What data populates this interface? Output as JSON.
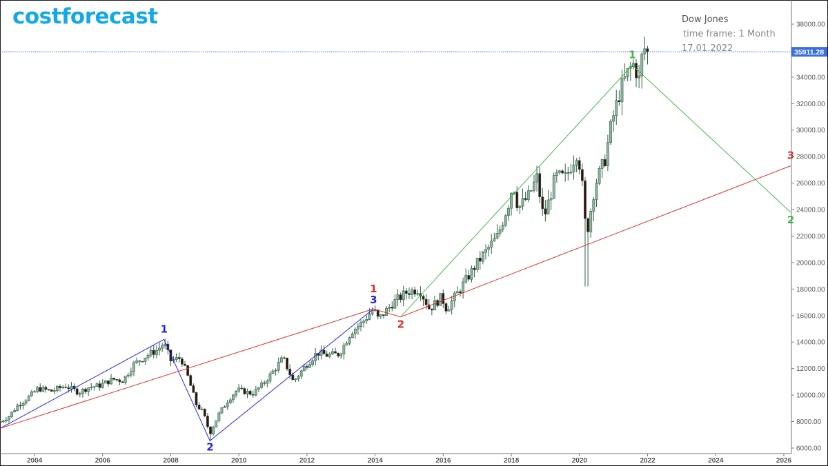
{
  "brand": {
    "logo_text": "costforecast",
    "logo_color": "#14a9e6"
  },
  "info_box": {
    "ticker": "Dow Jones",
    "time_frame": "time frame: 1 Month",
    "date": "17.01.2022"
  },
  "price_marker": {
    "value": "35911.28",
    "price": 35911.28,
    "bg_color": "#3b6fe0"
  },
  "colors": {
    "up_candle": "#8fb5a0",
    "up_candle_border": "#2f5e44",
    "down_candle": "#3a0e0e",
    "wave_blue": "#2222ee",
    "wave_red": "#e62a2a",
    "wave_green": "#4ab54a",
    "axis": "#777777"
  },
  "chart_data": {
    "type": "candlestick",
    "title": "Dow Jones",
    "subtitle": "time frame: 1 Month, 17.01.2022",
    "xlabel": "",
    "ylabel": "",
    "x_ticks": [
      "2004",
      "2006",
      "2008",
      "2010",
      "2012",
      "2014",
      "2016",
      "2018",
      "2020",
      "2022",
      "2024",
      "2026"
    ],
    "y_ticks": [
      "38000.00",
      "36000.00",
      "34000.00",
      "32000.00",
      "30000.00",
      "28000.00",
      "26000.00",
      "24000.00",
      "22000.00",
      "20000.00",
      "18000.00",
      "16000.00",
      "14000.00",
      "12000.00",
      "10000.00",
      "8000.00",
      "6000.00"
    ],
    "ylim": [
      6000,
      38000
    ],
    "xlim": [
      2003.0,
      2026.3
    ],
    "grid": false,
    "last_price": 35911.28,
    "yearly_closes": {
      "start": 2003.0,
      "points": [
        [
          2003.0,
          8000
        ],
        [
          2003.25,
          8400
        ],
        [
          2003.5,
          9200
        ],
        [
          2003.9,
          10000
        ],
        [
          2004.1,
          10500
        ],
        [
          2004.5,
          10300
        ],
        [
          2004.9,
          10700
        ],
        [
          2005.3,
          10200
        ],
        [
          2005.6,
          10600
        ],
        [
          2005.9,
          10700
        ],
        [
          2006.3,
          11200
        ],
        [
          2006.6,
          11100
        ],
        [
          2006.9,
          12300
        ],
        [
          2007.3,
          13000
        ],
        [
          2007.6,
          13400
        ],
        [
          2007.8,
          13900
        ],
        [
          2008.0,
          12600
        ],
        [
          2008.3,
          12800
        ],
        [
          2008.5,
          11400
        ],
        [
          2008.75,
          9300
        ],
        [
          2008.95,
          8700
        ],
        [
          2009.15,
          7100
        ],
        [
          2009.4,
          8500
        ],
        [
          2009.7,
          9700
        ],
        [
          2009.95,
          10400
        ],
        [
          2010.4,
          10100
        ],
        [
          2010.7,
          10800
        ],
        [
          2010.95,
          11600
        ],
        [
          2011.3,
          12800
        ],
        [
          2011.6,
          11000
        ],
        [
          2011.95,
          12200
        ],
        [
          2012.3,
          13200
        ],
        [
          2012.6,
          13000
        ],
        [
          2012.95,
          13100
        ],
        [
          2013.3,
          14800
        ],
        [
          2013.6,
          15400
        ],
        [
          2013.95,
          16500
        ],
        [
          2014.1,
          15700
        ],
        [
          2014.5,
          16900
        ],
        [
          2014.95,
          17800
        ],
        [
          2015.3,
          18000
        ],
        [
          2015.6,
          16500
        ],
        [
          2015.95,
          17400
        ],
        [
          2016.1,
          16500
        ],
        [
          2016.5,
          18000
        ],
        [
          2016.95,
          19800
        ],
        [
          2017.3,
          21000
        ],
        [
          2017.6,
          22000
        ],
        [
          2017.95,
          24700
        ],
        [
          2018.05,
          26100
        ],
        [
          2018.2,
          24100
        ],
        [
          2018.5,
          25000
        ],
        [
          2018.75,
          26400
        ],
        [
          2018.95,
          23300
        ],
        [
          2019.3,
          26500
        ],
        [
          2019.6,
          26400
        ],
        [
          2019.95,
          28500
        ],
        [
          2020.1,
          25400
        ],
        [
          2020.2,
          21900
        ],
        [
          2020.45,
          25800
        ],
        [
          2020.75,
          27800
        ],
        [
          2020.95,
          30600
        ],
        [
          2021.2,
          33000
        ],
        [
          2021.45,
          34500
        ],
        [
          2021.6,
          35000
        ],
        [
          2021.75,
          33800
        ],
        [
          2021.85,
          35800
        ],
        [
          2021.95,
          36300
        ],
        [
          2022.04,
          35911
        ]
      ]
    },
    "wave_annotations": [
      {
        "name": "blue",
        "color": "#2222ee",
        "points": [
          [
            2003.0,
            7500,
            ""
          ],
          [
            2007.8,
            14200,
            "1"
          ],
          [
            2009.15,
            6550,
            "2"
          ],
          [
            2013.95,
            16500,
            "3"
          ]
        ]
      },
      {
        "name": "red",
        "color": "#e62a2a",
        "points": [
          [
            2003.0,
            7500,
            ""
          ],
          [
            2013.95,
            16500,
            "1"
          ],
          [
            2014.75,
            15900,
            "2"
          ],
          [
            2026.2,
            27300,
            "3"
          ]
        ]
      },
      {
        "name": "green",
        "color": "#4ab54a",
        "points": [
          [
            2014.75,
            15900,
            ""
          ],
          [
            2021.55,
            34900,
            "1"
          ],
          [
            2026.2,
            23800,
            "2"
          ]
        ]
      }
    ]
  }
}
